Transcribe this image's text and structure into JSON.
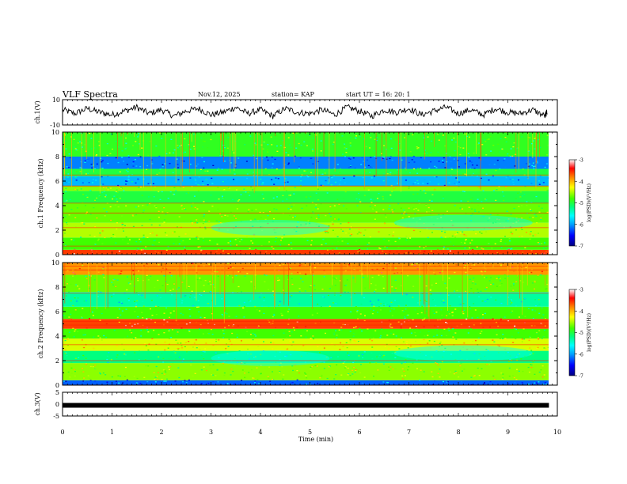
{
  "header": {
    "title": "VLF Spectra",
    "date": "Nov.12, 2025",
    "station": "station= KAP",
    "start": "start UT = 16: 20: 1"
  },
  "colors": {
    "cbar": [
      "#000080",
      "#0000ff",
      "#00a0ff",
      "#00ffff",
      "#00ff80",
      "#40ff00",
      "#ffff00",
      "#ff8000",
      "#ff0000",
      "#ffffff"
    ],
    "spec_base": "#4cd34a",
    "trace": "#000000"
  },
  "chart_data": [
    {
      "type": "line",
      "name": "ch1-waveform",
      "ylabel": "ch.1(V)",
      "ylim": [
        -10,
        10
      ],
      "yticks": [
        10,
        -10
      ],
      "x": [
        0,
        0.25,
        0.5,
        0.75,
        1,
        1.25,
        1.5,
        1.75,
        2,
        2.25,
        2.5,
        2.75,
        3,
        3.25,
        3.5,
        3.75,
        4,
        4.25,
        4.5,
        4.75,
        5,
        5.25,
        5.5,
        5.75,
        6,
        6.25,
        6.5,
        6.75,
        7,
        7.25,
        7.5,
        7.75,
        8,
        8.25,
        8.5,
        8.75,
        9,
        9.25,
        9.5,
        9.75,
        9.8
      ],
      "y": [
        2,
        -1,
        3,
        0,
        -2,
        1,
        4,
        -1,
        2,
        -3,
        1,
        3,
        -2,
        0,
        4,
        -1,
        2,
        -3,
        3,
        0,
        -1,
        2,
        -2,
        4,
        1,
        -3,
        2,
        0,
        3,
        -2,
        1,
        4,
        -1,
        2,
        -2,
        3,
        0,
        -1,
        2,
        -3,
        1
      ]
    },
    {
      "type": "heatmap",
      "name": "ch1-spectrogram",
      "ylabel": "ch.1 Frequency (kHz)",
      "ylim": [
        0,
        10
      ],
      "yticks": [
        0,
        2,
        4,
        6,
        8,
        10
      ],
      "colorbar": {
        "label": "log(PSD)(V²/Hz)",
        "range": [
          -7,
          -3
        ],
        "ticks": [
          -3,
          -4,
          -5,
          -6,
          -7
        ]
      },
      "bands": [
        {
          "from": 0.0,
          "to": 0.4,
          "level": -3.6
        },
        {
          "from": 0.4,
          "to": 1.4,
          "level": -4.8
        },
        {
          "from": 1.4,
          "to": 2.6,
          "level": -4.5
        },
        {
          "from": 2.6,
          "to": 4.2,
          "level": -4.7
        },
        {
          "from": 4.2,
          "to": 5.2,
          "level": -5.0
        },
        {
          "from": 5.2,
          "to": 5.6,
          "level": -4.6
        },
        {
          "from": 5.6,
          "to": 6.4,
          "level": -5.9
        },
        {
          "from": 6.4,
          "to": 7.0,
          "level": -5.0
        },
        {
          "from": 7.0,
          "to": 8.0,
          "level": -6.1
        },
        {
          "from": 8.0,
          "to": 10.0,
          "level": -4.9
        }
      ],
      "lines_khz": [
        0.2,
        0.7,
        2.2,
        3.4,
        4.2,
        5.6,
        6.5
      ]
    },
    {
      "type": "heatmap",
      "name": "ch2-spectrogram",
      "ylabel": "ch.2 Frequency (kHz)",
      "ylim": [
        0,
        10
      ],
      "yticks": [
        0,
        2,
        4,
        6,
        8,
        10
      ],
      "colorbar": {
        "label": "log(PSD)(V²/Hz)",
        "range": [
          -7,
          -3
        ],
        "ticks": [
          -3,
          -4,
          -5,
          -6,
          -7
        ]
      },
      "bands": [
        {
          "from": 0.0,
          "to": 0.4,
          "level": -6.2
        },
        {
          "from": 0.4,
          "to": 1.8,
          "level": -4.6
        },
        {
          "from": 1.8,
          "to": 2.8,
          "level": -5.2
        },
        {
          "from": 2.8,
          "to": 3.8,
          "level": -4.4
        },
        {
          "from": 3.8,
          "to": 4.6,
          "level": -4.8
        },
        {
          "from": 4.6,
          "to": 5.4,
          "level": -3.6
        },
        {
          "from": 5.4,
          "to": 6.4,
          "level": -4.8
        },
        {
          "from": 6.4,
          "to": 7.6,
          "level": -5.3
        },
        {
          "from": 7.6,
          "to": 9.0,
          "level": -4.7
        },
        {
          "from": 9.0,
          "to": 10.0,
          "level": -3.9
        }
      ],
      "lines_khz": [
        2.0,
        3.3,
        4.9,
        5.2,
        7.5,
        9.4,
        9.7
      ]
    },
    {
      "type": "line",
      "name": "ch3-trace",
      "ylabel": "ch.3(V)",
      "ylim": [
        -5,
        5
      ],
      "yticks": [
        5,
        0,
        -5
      ],
      "level": -0.5
    }
  ],
  "xaxis": {
    "label": "Time (min)",
    "range": [
      0,
      10
    ],
    "ticks": [
      "0",
      "1",
      "2",
      "3",
      "4",
      "5",
      "6",
      "7",
      "8",
      "9",
      "10"
    ]
  }
}
